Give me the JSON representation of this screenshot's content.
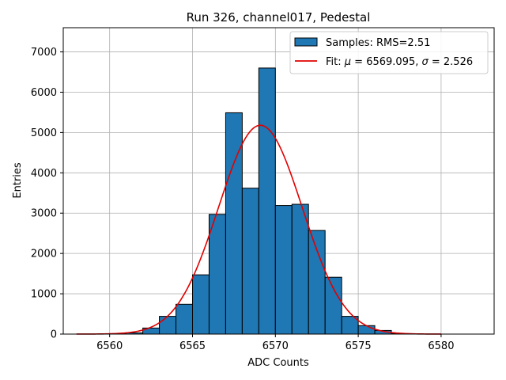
{
  "chart_data": {
    "type": "bar",
    "title": "Run 326, channel017, Pedestal",
    "xlabel": "ADC Counts",
    "ylabel": "Entries",
    "xlim": [
      6557.2,
      6583.2
    ],
    "ylim": [
      0,
      7600
    ],
    "xticks": [
      6560,
      6565,
      6570,
      6575,
      6580
    ],
    "yticks": [
      0,
      1000,
      2000,
      3000,
      4000,
      5000,
      6000,
      7000
    ],
    "grid": true,
    "legend_position": "top-right",
    "colors": {
      "bar": "#1f77b4",
      "edge": "#000000",
      "fit": "#e00000",
      "grid": "#b0b0b0"
    },
    "histogram": {
      "name": "Samples: RMS=2.51",
      "bin_width": 1,
      "bin_left_edges": [
        6560,
        6561,
        6562,
        6563,
        6564,
        6565,
        6566,
        6567,
        6568,
        6569,
        6570,
        6571,
        6572,
        6573,
        6574,
        6575,
        6576,
        6577
      ],
      "values": [
        10,
        30,
        150,
        440,
        740,
        1470,
        2970,
        5490,
        3620,
        6600,
        3190,
        3220,
        2570,
        1410,
        440,
        210,
        90,
        10
      ]
    },
    "fit": {
      "name_prefix": "Fit: ",
      "name_mu": "μ",
      "name_mid": " = 6569.095, ",
      "name_sigma": "σ",
      "name_suffix": " = 2.526",
      "mu": 6569.095,
      "sigma": 2.526,
      "amplitude": 5180,
      "x_range": [
        6558,
        6580
      ]
    }
  }
}
